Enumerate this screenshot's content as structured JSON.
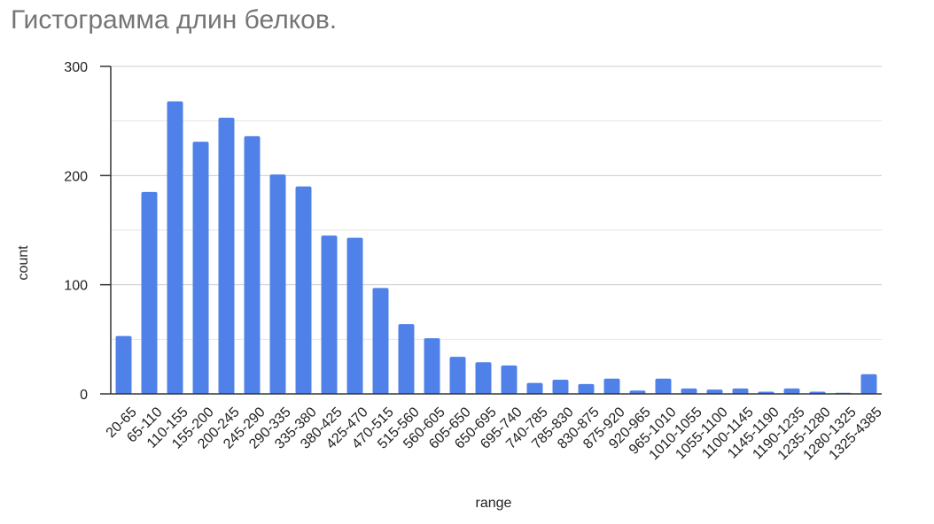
{
  "chart_data": {
    "type": "bar",
    "title": "Гистограмма длин белков.",
    "xlabel": "range",
    "ylabel": "count",
    "ylim": [
      0,
      300
    ],
    "yticks": [
      0,
      100,
      200,
      300
    ],
    "grid": true,
    "bar_color": "#4F81E8",
    "categories": [
      "20-65",
      "65-110",
      "110-155",
      "155-200",
      "200-245",
      "245-290",
      "290-335",
      "335-380",
      "380-425",
      "425-470",
      "470-515",
      "515-560",
      "560-605",
      "605-650",
      "650-695",
      "695-740",
      "740-785",
      "785-830",
      "830-875",
      "875-920",
      "920-965",
      "965-1010",
      "1010-1055",
      "1055-1100",
      "1100-1145",
      "1145-1190",
      "1190-1235",
      "1235-1280",
      "1280-1325",
      "1325-4385"
    ],
    "values": [
      53,
      185,
      268,
      231,
      253,
      236,
      201,
      190,
      145,
      143,
      97,
      64,
      51,
      34,
      29,
      26,
      10,
      13,
      9,
      14,
      3,
      14,
      5,
      4,
      5,
      2,
      5,
      2,
      1,
      18
    ]
  }
}
